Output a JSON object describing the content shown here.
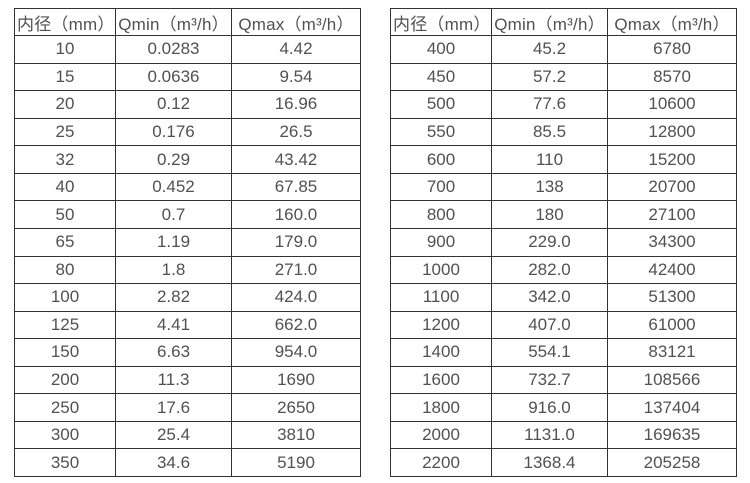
{
  "colors": {
    "border": "#333333",
    "text": "#515151",
    "background": "#ffffff"
  },
  "tables": [
    {
      "id": "flow-table-small-diameters",
      "headers": [
        "内径（mm）",
        "Qmin（m³/h）",
        "Qmax（m³/h）"
      ],
      "rows": [
        [
          "10",
          "0.0283",
          "4.42"
        ],
        [
          "15",
          "0.0636",
          "9.54"
        ],
        [
          "20",
          "0.12",
          "16.96"
        ],
        [
          "25",
          "0.176",
          "26.5"
        ],
        [
          "32",
          "0.29",
          "43.42"
        ],
        [
          "40",
          "0.452",
          "67.85"
        ],
        [
          "50",
          "0.7",
          "160.0"
        ],
        [
          "65",
          "1.19",
          "179.0"
        ],
        [
          "80",
          "1.8",
          "271.0"
        ],
        [
          "100",
          "2.82",
          "424.0"
        ],
        [
          "125",
          "4.41",
          "662.0"
        ],
        [
          "150",
          "6.63",
          "954.0"
        ],
        [
          "200",
          "11.3",
          "1690"
        ],
        [
          "250",
          "17.6",
          "2650"
        ],
        [
          "300",
          "25.4",
          "3810"
        ],
        [
          "350",
          "34.6",
          "5190"
        ]
      ]
    },
    {
      "id": "flow-table-large-diameters",
      "headers": [
        "内径（mm）",
        "Qmin（m³/h）",
        "Qmax（m³/h）"
      ],
      "rows": [
        [
          "400",
          "45.2",
          "6780"
        ],
        [
          "450",
          "57.2",
          "8570"
        ],
        [
          "500",
          "77.6",
          "10600"
        ],
        [
          "550",
          "85.5",
          "12800"
        ],
        [
          "600",
          "110",
          "15200"
        ],
        [
          "700",
          "138",
          "20700"
        ],
        [
          "800",
          "180",
          "27100"
        ],
        [
          "900",
          "229.0",
          "34300"
        ],
        [
          "1000",
          "282.0",
          "42400"
        ],
        [
          "1100",
          "342.0",
          "51300"
        ],
        [
          "1200",
          "407.0",
          "61000"
        ],
        [
          "1400",
          "554.1",
          "83121"
        ],
        [
          "1600",
          "732.7",
          "108566"
        ],
        [
          "1800",
          "916.0",
          "137404"
        ],
        [
          "2000",
          "1131.0",
          "169635"
        ],
        [
          "2200",
          "1368.4",
          "205258"
        ]
      ]
    }
  ]
}
